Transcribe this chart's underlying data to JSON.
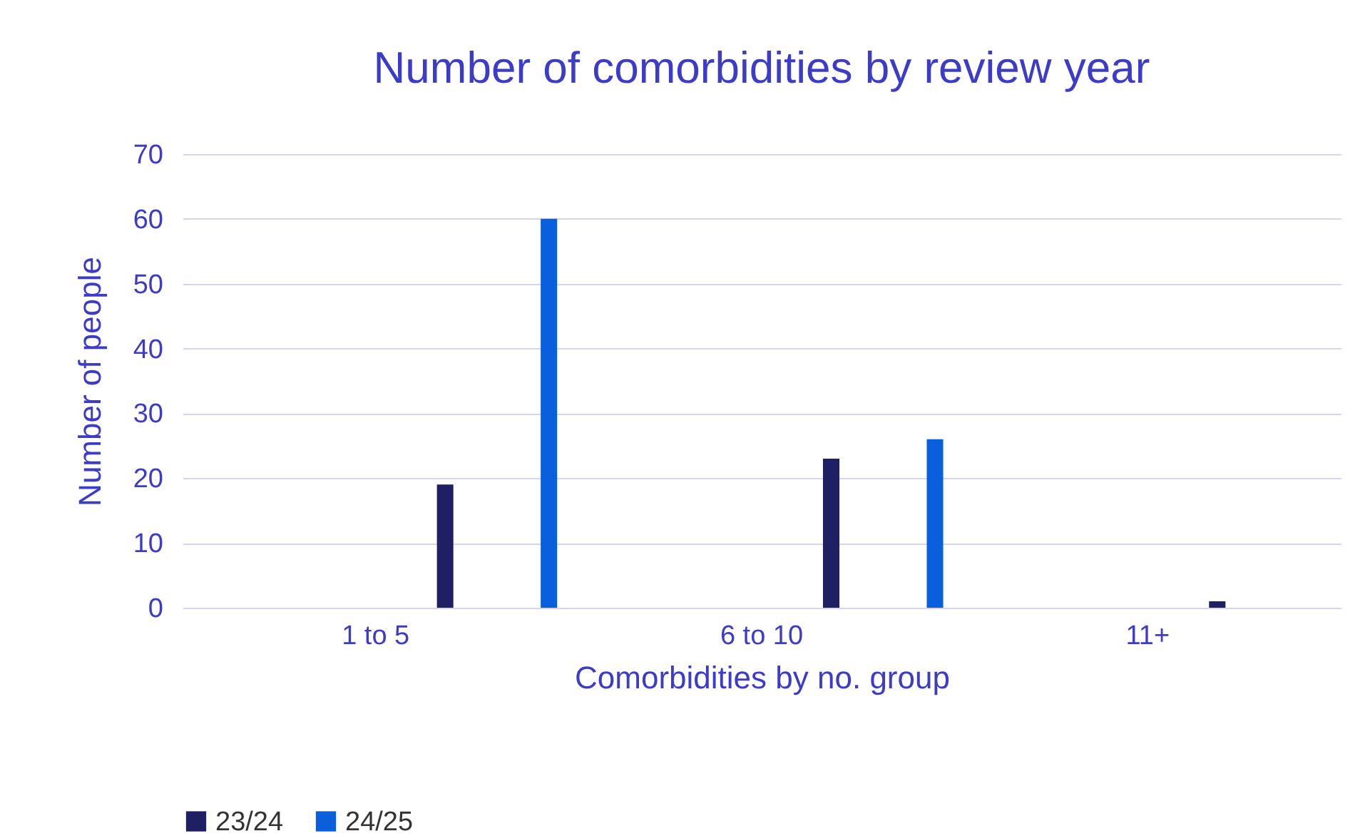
{
  "chart_data": {
    "type": "bar",
    "title": "Number of comorbidities by review year",
    "xlabel": "Comorbidities by no. group",
    "ylabel": "Number of people",
    "categories": [
      "1 to 5",
      "6 to 10",
      "11+"
    ],
    "series": [
      {
        "name": "23/24",
        "color": "#1f1f63",
        "values": [
          19,
          23,
          1
        ]
      },
      {
        "name": "24/25",
        "color": "#0a5fdc",
        "values": [
          60,
          26,
          0
        ]
      }
    ],
    "ylim": [
      0,
      70
    ],
    "yticks": [
      0,
      10,
      20,
      30,
      40,
      50,
      60,
      70
    ],
    "grid": "y",
    "legend": "bottom"
  }
}
